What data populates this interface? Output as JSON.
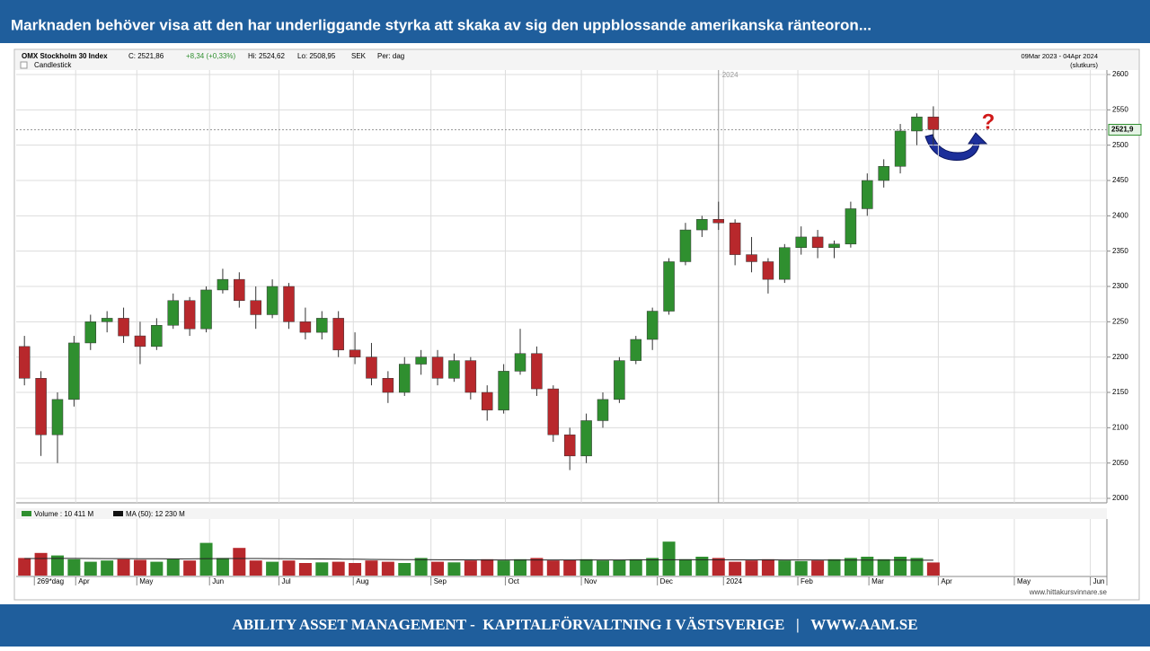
{
  "header": {
    "title": "Marknaden behöver visa att den har underliggande styrka att skaka av sig den uppblossande amerikanska ränteoron..."
  },
  "footer": {
    "text": "ABILITY ASSET MANAGEMENT -  KAPITALFÖRVALTNING I VÄSTSVERIGE   |   WWW.AAM.SE"
  },
  "chart_data": {
    "type": "candlestick",
    "info": [
      "OMX Stockholm 30 Index",
      "C: 2521,86",
      "+8,34 (+0,33%)",
      "Hi: 2524,62",
      "Lo: 2508,95",
      "SEK",
      "Per: dag"
    ],
    "chart_style": "Candlestick",
    "date_range": "09Mar 2023 - 04Apr 2024",
    "price_basis": "(slutkurs)",
    "year_marker": {
      "value": 42.5,
      "label": "2024"
    },
    "up_color": "#2f8f2f",
    "down_color": "#b8282c",
    "grid": true,
    "open": [
      2215,
      2170,
      2090,
      2140,
      2220,
      2250,
      2255,
      2230,
      2215,
      2245,
      2280,
      2240,
      2295,
      2310,
      2280,
      2260,
      2300,
      2250,
      2235,
      2255,
      2210,
      2200,
      2170,
      2150,
      2190,
      2200,
      2170,
      2195,
      2150,
      2125,
      2180,
      2205,
      2155,
      2090,
      2060,
      2110,
      2140,
      2195,
      2225,
      2265,
      2335,
      2380,
      2395,
      2390,
      2345,
      2335,
      2310,
      2355,
      2370,
      2355,
      2360,
      2410,
      2450,
      2470,
      2520,
      2540
    ],
    "high": [
      2230,
      2180,
      2150,
      2230,
      2260,
      2265,
      2270,
      2250,
      2255,
      2290,
      2285,
      2300,
      2325,
      2320,
      2300,
      2310,
      2305,
      2270,
      2265,
      2265,
      2235,
      2220,
      2180,
      2200,
      2210,
      2210,
      2205,
      2200,
      2160,
      2190,
      2240,
      2215,
      2160,
      2100,
      2120,
      2150,
      2200,
      2230,
      2270,
      2340,
      2390,
      2400,
      2420,
      2395,
      2370,
      2340,
      2360,
      2385,
      2380,
      2365,
      2420,
      2460,
      2480,
      2530,
      2545,
      2555
    ],
    "low": [
      2160,
      2060,
      2050,
      2130,
      2210,
      2235,
      2220,
      2190,
      2210,
      2240,
      2230,
      2235,
      2290,
      2270,
      2240,
      2255,
      2240,
      2225,
      2225,
      2200,
      2190,
      2160,
      2135,
      2145,
      2175,
      2160,
      2165,
      2140,
      2110,
      2120,
      2175,
      2145,
      2080,
      2040,
      2050,
      2100,
      2135,
      2190,
      2210,
      2260,
      2330,
      2370,
      2380,
      2330,
      2320,
      2290,
      2305,
      2345,
      2340,
      2340,
      2355,
      2400,
      2440,
      2460,
      2500,
      2500
    ],
    "close": [
      2170,
      2090,
      2140,
      2220,
      2250,
      2255,
      2230,
      2215,
      2245,
      2280,
      2240,
      2295,
      2310,
      2280,
      2260,
      2300,
      2250,
      2235,
      2255,
      2210,
      2200,
      2170,
      2150,
      2190,
      2200,
      2170,
      2195,
      2150,
      2125,
      2180,
      2205,
      2155,
      2090,
      2060,
      2110,
      2140,
      2195,
      2225,
      2265,
      2335,
      2380,
      2395,
      2390,
      2345,
      2335,
      2310,
      2355,
      2370,
      2355,
      2360,
      2410,
      2450,
      2470,
      2520,
      2540,
      2522
    ],
    "ylim": [
      2000,
      2600
    ],
    "yticks": [
      2000,
      2050,
      2100,
      2150,
      2200,
      2250,
      2300,
      2350,
      2400,
      2450,
      2500,
      2550,
      2600
    ],
    "xlim": [
      0,
      66
    ],
    "xticks": [
      {
        "value": 1.1,
        "label": "269*dag"
      },
      {
        "value": 3.6,
        "label": "Apr"
      },
      {
        "value": 7.3,
        "label": "May"
      },
      {
        "value": 11.7,
        "label": "Jun"
      },
      {
        "value": 15.9,
        "label": "Jul"
      },
      {
        "value": 20.4,
        "label": "Aug"
      },
      {
        "value": 25.1,
        "label": "Sep"
      },
      {
        "value": 29.6,
        "label": "Oct"
      },
      {
        "value": 34.2,
        "label": "Nov"
      },
      {
        "value": 38.8,
        "label": "Dec"
      },
      {
        "value": 42.8,
        "label": "2024"
      },
      {
        "value": 47.3,
        "label": "Feb"
      },
      {
        "value": 51.6,
        "label": "Mar"
      },
      {
        "value": 55.8,
        "label": "Apr"
      },
      {
        "value": 60.4,
        "label": "May"
      },
      {
        "value": 65,
        "label": "Jun"
      }
    ],
    "last_price": {
      "value": 2521.86,
      "label": "2521,9"
    },
    "volume": {
      "legend": "Volume : 10 411 M",
      "ma_legend": "MA (50): 12 230 M",
      "ylim": [
        0,
        40000
      ],
      "values": [
        14000,
        18000,
        16000,
        13000,
        11000,
        12000,
        13000,
        12500,
        11000,
        13000,
        12000,
        26000,
        14000,
        22000,
        12000,
        11000,
        12000,
        10000,
        10500,
        11000,
        10000,
        12000,
        11000,
        10000,
        14000,
        11000,
        10500,
        12000,
        13000,
        12000,
        13000,
        14000,
        12000,
        12500,
        13000,
        12000,
        12500,
        13000,
        14000,
        27000,
        13000,
        15000,
        14000,
        11000,
        12000,
        13000,
        12000,
        11500,
        12000,
        13000,
        14000,
        15000,
        13000,
        15000,
        14000,
        10411
      ],
      "ma": [
        13600,
        13600,
        13700,
        13700,
        13600,
        13500,
        13500,
        13400,
        13400,
        13300,
        13300,
        13500,
        13500,
        13600,
        13600,
        13500,
        13400,
        13300,
        13200,
        13100,
        13000,
        12900,
        12800,
        12700,
        12700,
        12600,
        12500,
        12500,
        12400,
        12400,
        12400,
        12400,
        12400,
        12400,
        12400,
        12400,
        12400,
        12500,
        12500,
        12600,
        12600,
        12600,
        12600,
        12500,
        12500,
        12500,
        12400,
        12400,
        12400,
        12300,
        12300,
        12300,
        12300,
        12300,
        12250,
        12230
      ]
    },
    "source": "www.hittakursvinnare.se",
    "annotation": "?"
  }
}
